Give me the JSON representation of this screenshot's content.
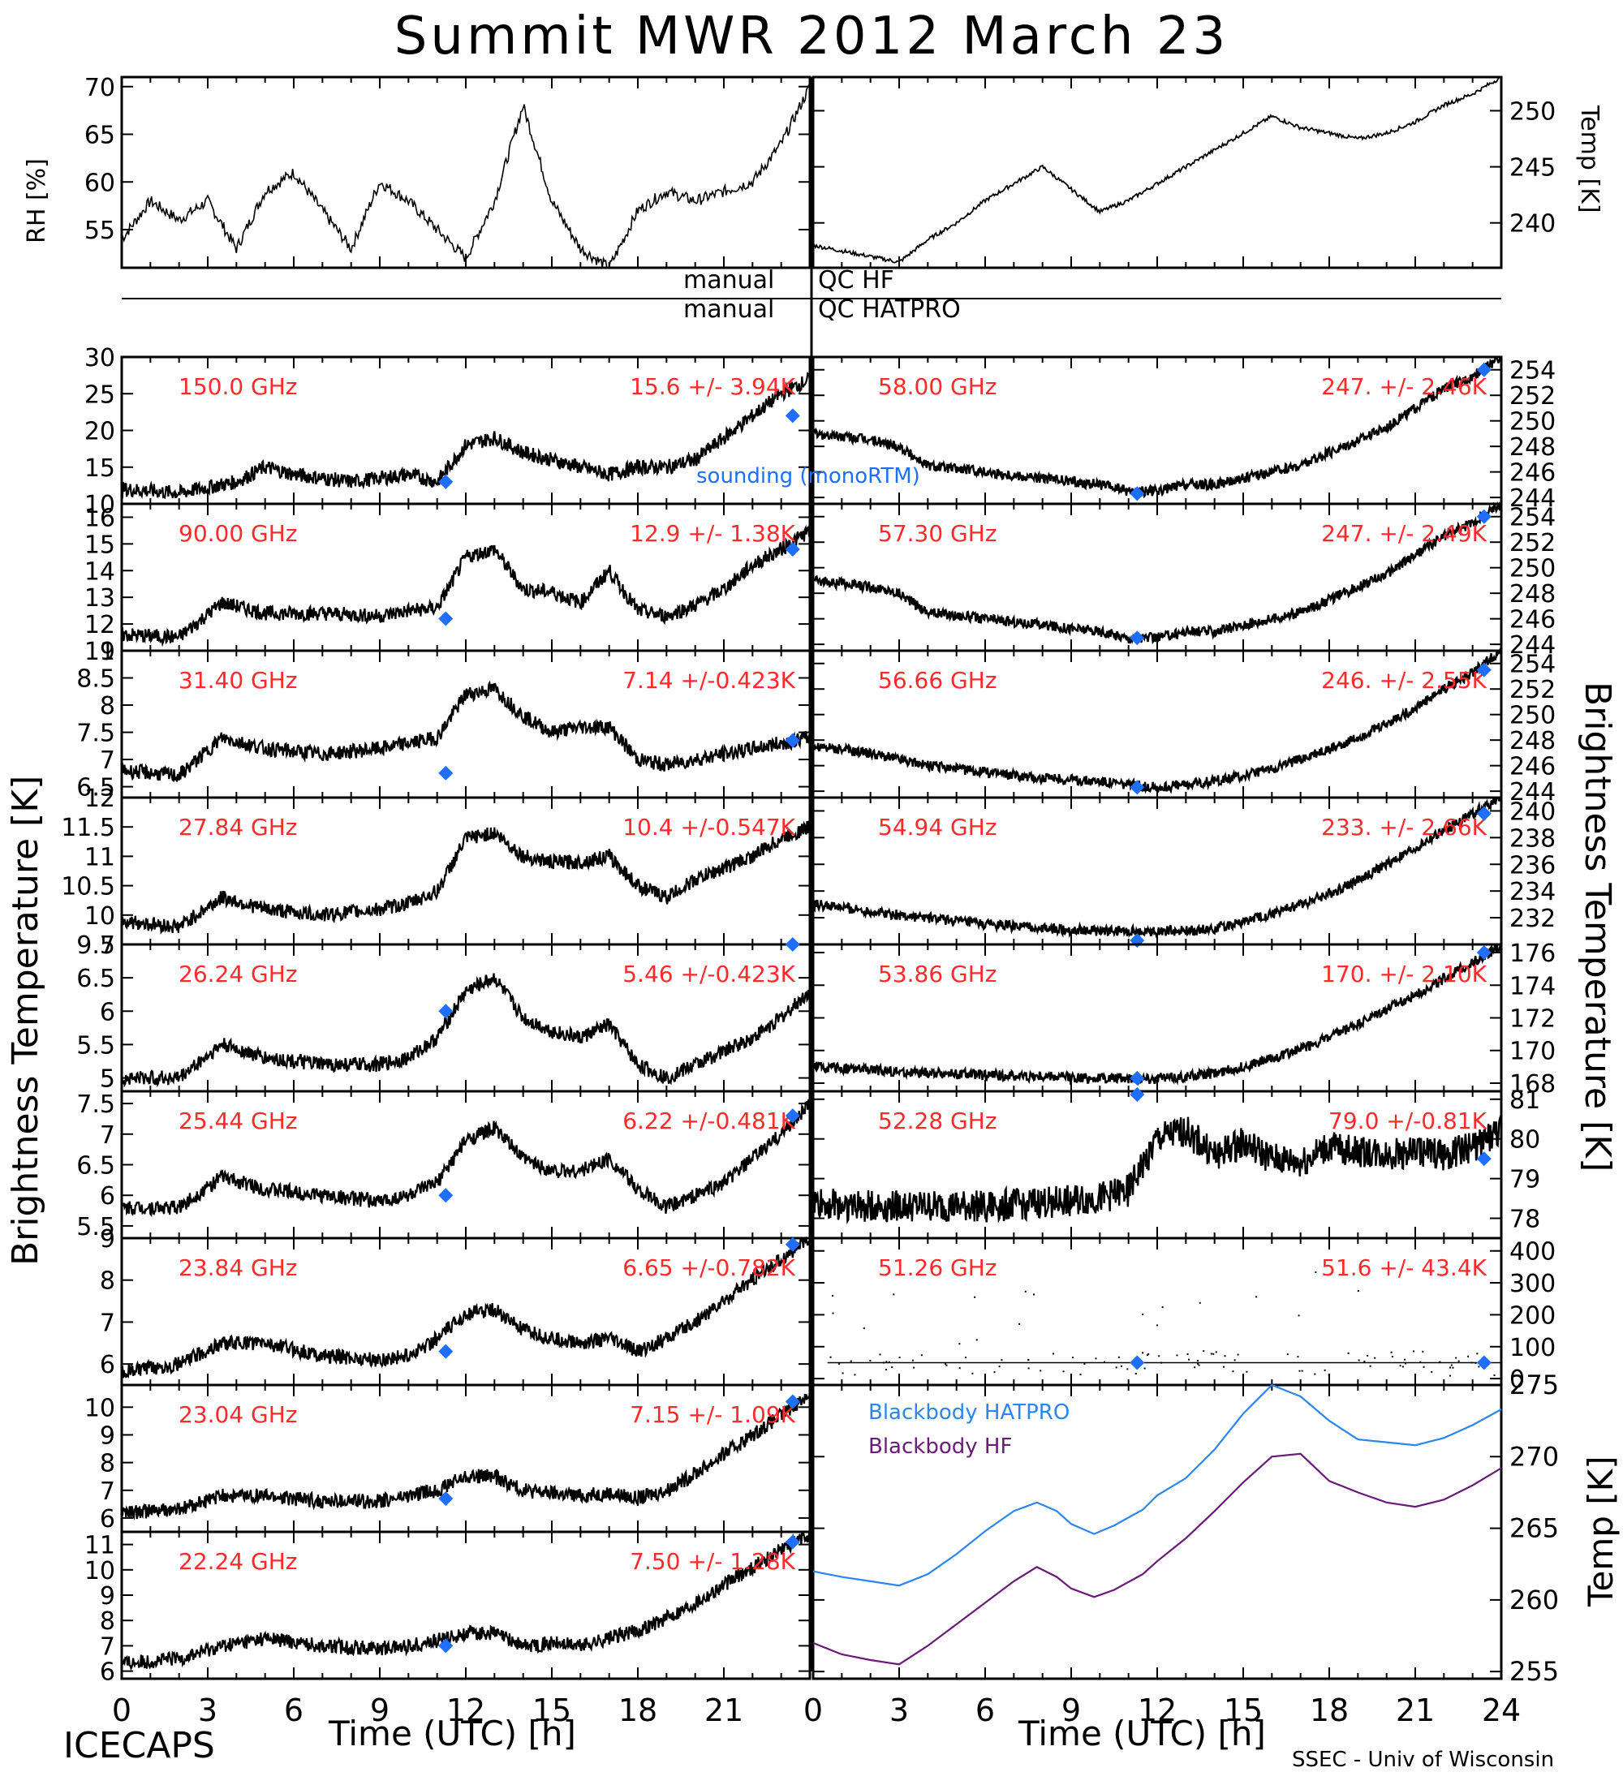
{
  "title": "Summit MWR 2012 March 23",
  "labels": {
    "rh": "RH [%]",
    "temp_top": "Temp [K]",
    "bt_left": "Brightness Temperature [K]",
    "bt_right": "Brightness Temperature [K]",
    "temp_bb": "Temp [K]",
    "xlabel_left": "Time (UTC) [h]",
    "xlabel_right": "Time (UTC) [h]",
    "qc_hf_a": "manual",
    "qc_hf_b": "QC HF",
    "qc_hatpro_a": "manual",
    "qc_hatpro_b": "QC HATPRO",
    "sounding": "sounding (monoRTM)",
    "bb_hatpro": "Blackbody HATPRO",
    "bb_hf": "Blackbody HF",
    "footer_left": "ICECAPS",
    "footer_right": "SSEC - Univ of Wisconsin"
  },
  "colors": {
    "annot": "#ff2a2a",
    "sounding": "#1e6fff",
    "bb_hatpro": "#2b86ee",
    "bb_hf": "#6a1a78",
    "data": "#000000"
  },
  "chart_data": [
    {
      "panel": "rh",
      "type": "line",
      "ylabel": "RH [%]",
      "ylim": [
        51,
        71
      ],
      "yticks": [
        55,
        60,
        65,
        70
      ],
      "x": [
        0,
        1,
        2,
        3,
        4,
        5,
        6,
        7,
        8,
        9,
        10,
        11,
        12,
        13,
        14,
        15,
        16,
        17,
        18,
        19,
        20,
        21,
        22,
        23,
        24
      ],
      "y": [
        54,
        58,
        56,
        58,
        53,
        59,
        61,
        57,
        53,
        60,
        58,
        55,
        52,
        58,
        68,
        58,
        53,
        51,
        57,
        59,
        58,
        59,
        60,
        64,
        70
      ]
    },
    {
      "panel": "temp",
      "type": "line",
      "ylabel": "Temp [K]",
      "ylim": [
        236,
        253
      ],
      "yticks": [
        240,
        245,
        250
      ],
      "x": [
        0,
        1,
        2,
        3,
        4,
        5,
        6,
        7,
        8,
        9,
        10,
        11,
        12,
        13,
        14,
        15,
        16,
        17,
        18,
        19,
        20,
        21,
        22,
        23,
        24
      ],
      "y": [
        238,
        237.5,
        237,
        236.5,
        238.5,
        240,
        242,
        243.5,
        245,
        243,
        241,
        242,
        243.5,
        245,
        246.5,
        248,
        249.5,
        248.5,
        248,
        247.5,
        248,
        249,
        250.5,
        251.5,
        253
      ]
    },
    {
      "panel": "150",
      "type": "line",
      "freq_label": "150.0 GHz",
      "stat_label": "15.6 +/- 3.94K",
      "ylim": [
        10,
        30
      ],
      "yticks": [
        10,
        15,
        20,
        25,
        30
      ],
      "x": [
        0,
        2,
        4,
        5,
        6,
        8,
        10,
        11,
        12,
        13,
        14,
        15,
        16,
        17,
        18,
        19,
        20,
        21,
        22,
        23,
        24
      ],
      "y": [
        12,
        11.5,
        13,
        15,
        14,
        13,
        14,
        13,
        18,
        19,
        17,
        16,
        15,
        14,
        15,
        15,
        16,
        19,
        22,
        25,
        27
      ],
      "sounding": [
        [
          11.3,
          13
        ],
        [
          23.4,
          22
        ]
      ]
    },
    {
      "panel": "90",
      "type": "line",
      "freq_label": "90.00 GHz",
      "stat_label": "12.9 +/- 1.38K",
      "ylim": [
        11,
        16.5
      ],
      "yticks": [
        11,
        12,
        13,
        14,
        15,
        16
      ],
      "x": [
        0,
        2,
        3.5,
        5,
        7,
        9,
        10,
        11,
        12,
        13,
        14,
        15,
        16,
        17,
        18,
        19,
        20,
        21,
        22,
        23,
        24
      ],
      "y": [
        11.6,
        11.5,
        12.8,
        12.4,
        12.4,
        12.3,
        12.5,
        12.6,
        14.5,
        14.8,
        13.3,
        13.2,
        12.8,
        14,
        12.5,
        12.3,
        12.7,
        13.3,
        14.2,
        14.8,
        15.5
      ],
      "sounding": [
        [
          11.3,
          12.2
        ],
        [
          23.4,
          14.8
        ]
      ]
    },
    {
      "panel": "31.4",
      "type": "line",
      "freq_label": "31.40 GHz",
      "stat_label": "7.14 +/-0.423K",
      "ylim": [
        6.3,
        9
      ],
      "yticks": [
        6.5,
        7,
        7.5,
        8,
        8.5,
        9
      ],
      "x": [
        0,
        2,
        3.5,
        5,
        7,
        9,
        10,
        11,
        12,
        13,
        14,
        15,
        16,
        17,
        18,
        19,
        20,
        21,
        22,
        23,
        24
      ],
      "y": [
        6.8,
        6.7,
        7.4,
        7.2,
        7.1,
        7.2,
        7.3,
        7.4,
        8.2,
        8.3,
        7.8,
        7.5,
        7.6,
        7.6,
        7.0,
        6.9,
        7.0,
        7.1,
        7.2,
        7.3,
        7.4
      ],
      "sounding": [
        [
          11.3,
          6.75
        ],
        [
          23.4,
          7.35
        ]
      ]
    },
    {
      "panel": "27.84",
      "type": "line",
      "freq_label": "27.84 GHz",
      "stat_label": "10.4 +/-0.547K",
      "ylim": [
        9.5,
        12
      ],
      "yticks": [
        9.5,
        10,
        10.5,
        11,
        11.5,
        12
      ],
      "x": [
        0,
        2,
        3.5,
        5,
        7,
        9,
        10,
        11,
        12,
        13,
        14,
        15,
        16,
        17,
        18,
        19,
        20,
        21,
        22,
        23,
        24
      ],
      "y": [
        9.9,
        9.8,
        10.3,
        10.1,
        10.0,
        10.1,
        10.2,
        10.4,
        11.3,
        11.4,
        11.0,
        10.9,
        10.9,
        11.0,
        10.5,
        10.3,
        10.6,
        10.8,
        11.0,
        11.3,
        11.5
      ],
      "sounding": []
    },
    {
      "panel": "26.24",
      "type": "line",
      "freq_label": "26.24 GHz",
      "stat_label": "5.46 +/-0.423K",
      "ylim": [
        4.8,
        7
      ],
      "yticks": [
        5,
        5.5,
        6,
        6.5,
        7
      ],
      "x": [
        0,
        2,
        3.5,
        5,
        7,
        9,
        10,
        11,
        12,
        13,
        14,
        15,
        16,
        17,
        18,
        19,
        20,
        21,
        22,
        23,
        24
      ],
      "y": [
        5.0,
        5.0,
        5.5,
        5.3,
        5.2,
        5.2,
        5.3,
        5.6,
        6.3,
        6.5,
        5.9,
        5.7,
        5.6,
        5.8,
        5.2,
        5.0,
        5.2,
        5.4,
        5.6,
        5.9,
        6.3
      ],
      "sounding": [
        [
          11.3,
          6.0
        ],
        [
          23.4,
          7.0
        ]
      ]
    },
    {
      "panel": "25.44",
      "type": "line",
      "freq_label": "25.44 GHz",
      "stat_label": "6.22 +/-0.481K",
      "ylim": [
        5.3,
        7.7
      ],
      "yticks": [
        5.5,
        6,
        6.5,
        7,
        7.5
      ],
      "x": [
        0,
        2,
        3.5,
        5,
        7,
        9,
        10,
        11,
        12,
        13,
        14,
        15,
        16,
        17,
        18,
        19,
        20,
        21,
        22,
        23,
        24
      ],
      "y": [
        5.8,
        5.8,
        6.3,
        6.1,
        6.0,
        5.9,
        6.0,
        6.2,
        6.9,
        7.1,
        6.6,
        6.4,
        6.4,
        6.6,
        6.1,
        5.8,
        6.0,
        6.2,
        6.6,
        7.0,
        7.5
      ],
      "sounding": [
        [
          11.3,
          6.0
        ],
        [
          23.4,
          7.3
        ]
      ]
    },
    {
      "panel": "23.84",
      "type": "line",
      "freq_label": "23.84 GHz",
      "stat_label": "6.65 +/-0.782K",
      "ylim": [
        5.5,
        9
      ],
      "yticks": [
        6,
        7,
        8,
        9
      ],
      "x": [
        0,
        2,
        3.5,
        5,
        7,
        9,
        10,
        11,
        12,
        13,
        14,
        15,
        16,
        17,
        18,
        19,
        20,
        21,
        22,
        23,
        24
      ],
      "y": [
        5.8,
        6.0,
        6.5,
        6.5,
        6.2,
        6.1,
        6.2,
        6.6,
        7.2,
        7.3,
        6.8,
        6.6,
        6.5,
        6.6,
        6.3,
        6.6,
        7.0,
        7.5,
        8.0,
        8.5,
        9.0
      ],
      "sounding": [
        [
          11.3,
          6.3
        ],
        [
          23.4,
          8.85
        ]
      ]
    },
    {
      "panel": "23.04",
      "type": "line",
      "freq_label": "23.04 GHz",
      "stat_label": "7.15 +/- 1.09K",
      "ylim": [
        5.5,
        10.8
      ],
      "yticks": [
        6,
        7,
        8,
        9,
        10
      ],
      "x": [
        0,
        2,
        3.5,
        5,
        7,
        9,
        10,
        11,
        12,
        13,
        14,
        15,
        16,
        17,
        18,
        19,
        20,
        21,
        22,
        23,
        24
      ],
      "y": [
        6.2,
        6.3,
        6.8,
        6.8,
        6.6,
        6.6,
        6.8,
        7.0,
        7.5,
        7.5,
        7.0,
        6.9,
        6.8,
        6.9,
        6.7,
        7.0,
        7.6,
        8.3,
        9.0,
        9.7,
        10.5
      ],
      "sounding": [
        [
          11.3,
          6.7
        ],
        [
          23.4,
          10.2
        ]
      ]
    },
    {
      "panel": "22.24",
      "type": "line",
      "freq_label": "22.24 GHz",
      "stat_label": "7.50 +/- 1.28K",
      "ylim": [
        5.7,
        11.5
      ],
      "yticks": [
        6,
        7,
        8,
        9,
        10,
        11
      ],
      "x": [
        0,
        2,
        3.5,
        5,
        7,
        9,
        10,
        11,
        12,
        13,
        14,
        15,
        16,
        17,
        18,
        19,
        20,
        21,
        22,
        23,
        24
      ],
      "y": [
        6.3,
        6.5,
        7.0,
        7.3,
        7.0,
        6.9,
        7.0,
        7.2,
        7.5,
        7.5,
        7.0,
        7.1,
        7.0,
        7.3,
        7.6,
        8.1,
        8.7,
        9.4,
        10.1,
        10.8,
        11.4
      ],
      "sounding": [
        [
          11.3,
          7.0
        ],
        [
          23.4,
          11.1
        ]
      ]
    },
    {
      "panel": "58",
      "type": "line",
      "freq_label": "58.00 GHz",
      "stat_label": "247. +/- 2.46K",
      "ylim": [
        243.5,
        255
      ],
      "yticks": [
        244,
        246,
        248,
        250,
        252,
        254
      ],
      "x": [
        0,
        2,
        3,
        4,
        6,
        8,
        10,
        11,
        12,
        13,
        14,
        15,
        16,
        17,
        18,
        19,
        20,
        21,
        22,
        23,
        24
      ],
      "y": [
        249,
        248.5,
        248,
        246.5,
        246,
        245.5,
        245,
        244.5,
        244.5,
        245,
        245,
        245.5,
        246,
        246.5,
        247.5,
        248.5,
        249.5,
        251,
        252.5,
        253.5,
        255
      ],
      "sounding": [
        [
          11.3,
          244.3
        ],
        [
          23.4,
          254
        ]
      ]
    },
    {
      "panel": "57.3",
      "type": "line",
      "freq_label": "57.30 GHz",
      "stat_label": "247. +/- 2.49K",
      "ylim": [
        243.5,
        255
      ],
      "yticks": [
        244,
        246,
        248,
        250,
        252,
        254
      ],
      "x": [
        0,
        2,
        3,
        4,
        6,
        8,
        10,
        11,
        12,
        13,
        14,
        15,
        16,
        17,
        18,
        19,
        20,
        21,
        22,
        23,
        24
      ],
      "y": [
        249,
        248.5,
        248,
        246.5,
        246,
        245.5,
        245,
        244.5,
        244.5,
        245,
        245,
        245.5,
        246,
        246.5,
        247.5,
        248.5,
        249.5,
        251,
        252.5,
        253.5,
        255
      ],
      "sounding": [
        [
          11.3,
          244.5
        ],
        [
          23.4,
          254
        ]
      ]
    },
    {
      "panel": "56.66",
      "type": "line",
      "freq_label": "56.66 GHz",
      "stat_label": "246. +/- 2.55K",
      "ylim": [
        243.5,
        255
      ],
      "yticks": [
        244,
        246,
        248,
        250,
        252,
        254
      ],
      "x": [
        0,
        2,
        3,
        4,
        6,
        8,
        10,
        11,
        12,
        13,
        14,
        15,
        16,
        17,
        18,
        19,
        20,
        21,
        22,
        23,
        24
      ],
      "y": [
        247.5,
        247,
        246.5,
        246,
        245.5,
        245,
        244.8,
        244.5,
        244.3,
        244.5,
        244.8,
        245.2,
        245.8,
        246.5,
        247.3,
        248.2,
        249.3,
        250.5,
        252,
        253.3,
        255
      ],
      "sounding": [
        [
          11.3,
          244.3
        ],
        [
          23.4,
          253.5
        ]
      ]
    },
    {
      "panel": "54.94",
      "type": "line",
      "freq_label": "54.94 GHz",
      "stat_label": "233. +/- 2.66K",
      "ylim": [
        230,
        241
      ],
      "yticks": [
        232,
        234,
        236,
        238,
        240
      ],
      "x": [
        0,
        2,
        3,
        4,
        6,
        8,
        10,
        11,
        12,
        13,
        14,
        15,
        16,
        17,
        18,
        19,
        20,
        21,
        22,
        23,
        24
      ],
      "y": [
        233,
        232.5,
        232.2,
        232,
        231.5,
        231.2,
        231,
        231,
        231,
        231,
        231.2,
        231.7,
        232.3,
        233,
        233.8,
        234.8,
        236,
        237.2,
        238.5,
        239.8,
        241
      ],
      "sounding": [
        [
          11.3,
          230.3
        ],
        [
          23.4,
          239.8
        ]
      ]
    },
    {
      "panel": "53.86",
      "type": "line",
      "freq_label": "53.86 GHz",
      "stat_label": "170. +/- 2.10K",
      "ylim": [
        167.5,
        176.5
      ],
      "yticks": [
        168,
        170,
        172,
        174,
        176
      ],
      "x": [
        0,
        2,
        3,
        4,
        6,
        8,
        10,
        11,
        12,
        13,
        14,
        15,
        16,
        17,
        18,
        19,
        20,
        21,
        22,
        23,
        24
      ],
      "y": [
        169,
        168.8,
        168.7,
        168.6,
        168.5,
        168.4,
        168.3,
        168.3,
        168.3,
        168.4,
        168.6,
        169,
        169.5,
        170.1,
        170.8,
        171.6,
        172.5,
        173.4,
        174.4,
        175.4,
        176.4
      ],
      "sounding": [
        [
          11.3,
          168.3
        ],
        [
          23.4,
          176
        ]
      ]
    },
    {
      "panel": "52.28",
      "type": "line",
      "freq_label": "52.28 GHz",
      "stat_label": "79.0 +/-0.81K",
      "ylim": [
        77.5,
        81.2
      ],
      "yticks": [
        78,
        79,
        80,
        81
      ],
      "x": [
        0,
        2,
        4,
        6,
        8,
        10,
        11,
        12,
        13,
        14,
        15,
        16,
        17,
        18,
        19,
        20,
        21,
        22,
        23,
        24
      ],
      "y": [
        78.4,
        78.3,
        78.3,
        78.3,
        78.4,
        78.5,
        78.7,
        80.0,
        80.2,
        79.6,
        79.9,
        79.5,
        79.4,
        79.8,
        79.7,
        79.6,
        79.7,
        79.6,
        79.8,
        80.2
      ],
      "sounding": [
        [
          11.3,
          81.5
        ],
        [
          23.4,
          79.5
        ]
      ]
    },
    {
      "panel": "51.26",
      "type": "line",
      "freq_label": "51.26 GHz",
      "stat_label": "51.6 +/- 43.4K",
      "ylim": [
        -20,
        440
      ],
      "yticks": [
        0,
        100,
        200,
        300,
        400
      ],
      "x": [
        0,
        24
      ],
      "y": [
        50,
        50
      ],
      "sounding": [
        [
          11.3,
          50
        ],
        [
          23.4,
          50
        ]
      ]
    },
    {
      "panel": "blackbody",
      "type": "line",
      "ylabel": "Temp [K]",
      "ylim": [
        254.5,
        275
      ],
      "yticks": [
        255,
        260,
        265,
        270,
        275
      ],
      "x": [
        0,
        1,
        2,
        3,
        4,
        5,
        6,
        7,
        7.8,
        8.5,
        9,
        9.8,
        10.5,
        11.5,
        12,
        13,
        14,
        15,
        16,
        17,
        18,
        19,
        20,
        21,
        22,
        23,
        24
      ],
      "series": [
        {
          "name": "Blackbody HATPRO",
          "values": [
            262,
            261.6,
            261.3,
            261,
            261.8,
            263.2,
            264.8,
            266.2,
            266.8,
            266.2,
            265.3,
            264.6,
            265.2,
            266.3,
            267.3,
            268.5,
            270.5,
            273,
            275,
            274.2,
            272.5,
            271.2,
            271,
            270.8,
            271.3,
            272.2,
            273.3
          ]
        },
        {
          "name": "Blackbody HF",
          "values": [
            257,
            256.2,
            255.8,
            255.5,
            256.8,
            258.3,
            259.8,
            261.3,
            262.3,
            261.6,
            260.8,
            260.2,
            260.7,
            261.8,
            262.7,
            264.3,
            266.2,
            268.2,
            270,
            270.2,
            268.3,
            267.5,
            266.8,
            266.5,
            267,
            268,
            269.2
          ]
        }
      ]
    }
  ],
  "xaxis": {
    "range": [
      0,
      24
    ],
    "ticks_left": [
      "0",
      "3",
      "6",
      "9",
      "12",
      "15",
      "18",
      "21"
    ],
    "ticks_right": [
      "0",
      "3",
      "6",
      "9",
      "12",
      "15",
      "18",
      "21",
      "24"
    ]
  }
}
